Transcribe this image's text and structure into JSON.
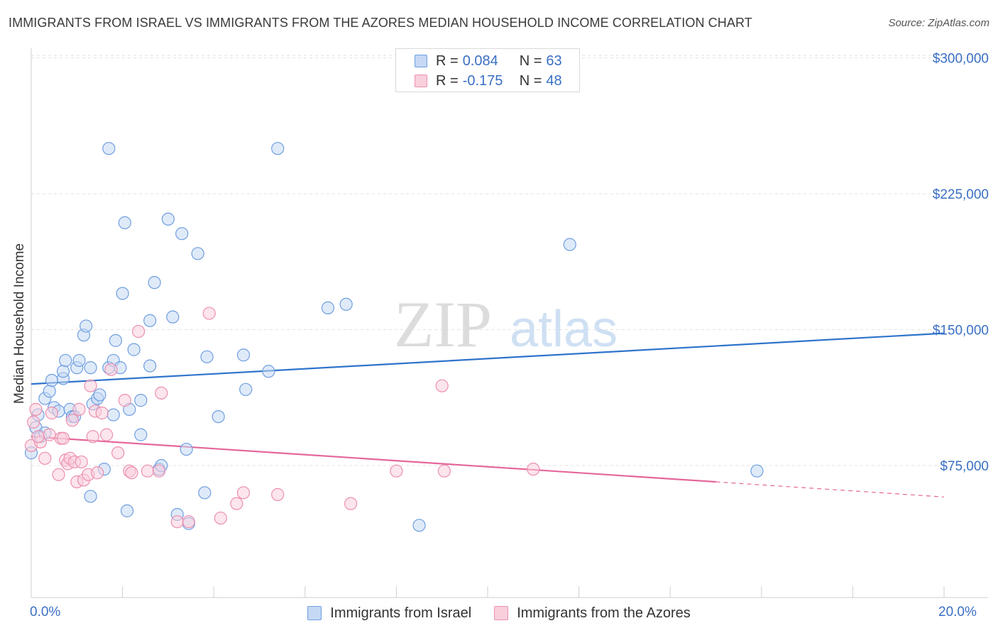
{
  "title": "IMMIGRANTS FROM ISRAEL VS IMMIGRANTS FROM THE AZORES MEDIAN HOUSEHOLD INCOME CORRELATION CHART",
  "source": "Source: ZipAtlas.com",
  "watermark": {
    "zip": "ZIP",
    "atlas": "atlas"
  },
  "legend_stats": {
    "rows": [
      {
        "r_label": "R =",
        "r_value": "0.084",
        "n_label": "N =",
        "n_value": "63",
        "color": "#6f9fe0",
        "fill": "#c5d8f4"
      },
      {
        "r_label": "R =",
        "r_value": "-0.175",
        "n_label": "N =",
        "n_value": "48",
        "color": "#ec8fb0",
        "fill": "#f9cfdc"
      }
    ]
  },
  "bottom_legend": [
    {
      "label": "Immigrants from Israel",
      "color": "#6f9fe0",
      "fill": "#c5d8f4"
    },
    {
      "label": "Immigrants from the Azores",
      "color": "#ec8fb0",
      "fill": "#f9cfdc"
    }
  ],
  "x_tick_labels": {
    "left": "0.0%",
    "right": "20.0%"
  },
  "chart_data": {
    "type": "scatter",
    "title": "IMMIGRANTS FROM ISRAEL VS IMMIGRANTS FROM THE AZORES MEDIAN HOUSEHOLD INCOME CORRELATION CHART",
    "xlabel": "",
    "ylabel": "Median Household Income",
    "xlim": [
      0,
      20
    ],
    "ylim": [
      10000,
      310000
    ],
    "x_unit": "%",
    "y_ticks": [
      75000,
      150000,
      225000,
      300000
    ],
    "y_tick_labels": [
      "$75,000",
      "$150,000",
      "$225,000",
      "$300,000"
    ],
    "x_tick_labels": [
      "0.0%",
      "20.0%"
    ],
    "grid": true,
    "legend_position": "top-center",
    "series": [
      {
        "name": "Immigrants from Israel",
        "color": "#6f9fe0",
        "fill": "#c5d8f4",
        "trend": {
          "x": [
            0,
            20
          ],
          "y": [
            120000,
            148000
          ],
          "color": "#2f74cc",
          "dashed_from_x": null
        },
        "points": [
          [
            0.0,
            82000
          ],
          [
            0.1,
            96000
          ],
          [
            0.15,
            103000
          ],
          [
            0.2,
            91000
          ],
          [
            0.3,
            93000
          ],
          [
            0.3,
            112000
          ],
          [
            0.4,
            116000
          ],
          [
            0.45,
            122000
          ],
          [
            0.5,
            107000
          ],
          [
            0.6,
            105000
          ],
          [
            0.7,
            123000
          ],
          [
            0.7,
            127000
          ],
          [
            0.75,
            133000
          ],
          [
            0.85,
            106000
          ],
          [
            0.9,
            102000
          ],
          [
            0.95,
            102000
          ],
          [
            1.0,
            129000
          ],
          [
            1.05,
            133000
          ],
          [
            1.15,
            147000
          ],
          [
            1.2,
            152000
          ],
          [
            1.3,
            58000
          ],
          [
            1.3,
            129000
          ],
          [
            1.35,
            109000
          ],
          [
            1.45,
            112000
          ],
          [
            1.5,
            114000
          ],
          [
            1.6,
            73000
          ],
          [
            1.7,
            129000
          ],
          [
            1.7,
            250000
          ],
          [
            1.8,
            133000
          ],
          [
            1.8,
            103000
          ],
          [
            1.85,
            144000
          ],
          [
            1.95,
            129000
          ],
          [
            2.0,
            170000
          ],
          [
            2.05,
            209000
          ],
          [
            2.1,
            50000
          ],
          [
            2.15,
            106000
          ],
          [
            2.25,
            139000
          ],
          [
            2.4,
            92000
          ],
          [
            2.4,
            111000
          ],
          [
            2.6,
            130000
          ],
          [
            2.6,
            155000
          ],
          [
            2.7,
            176000
          ],
          [
            2.8,
            73000
          ],
          [
            2.85,
            75000
          ],
          [
            3.0,
            211000
          ],
          [
            3.1,
            157000
          ],
          [
            3.2,
            48000
          ],
          [
            3.3,
            203000
          ],
          [
            3.4,
            84000
          ],
          [
            3.45,
            43000
          ],
          [
            3.65,
            192000
          ],
          [
            3.8,
            60000
          ],
          [
            3.85,
            135000
          ],
          [
            4.1,
            102000
          ],
          [
            4.65,
            136000
          ],
          [
            4.7,
            117000
          ],
          [
            5.2,
            127000
          ],
          [
            5.4,
            250000
          ],
          [
            6.5,
            162000
          ],
          [
            6.9,
            164000
          ],
          [
            8.5,
            42000
          ],
          [
            11.8,
            197000
          ],
          [
            15.9,
            72000
          ]
        ]
      },
      {
        "name": "Immigrants from the Azores",
        "color": "#ec8fb0",
        "fill": "#f9cfdc",
        "trend": {
          "x": [
            0,
            15
          ],
          "y": [
            91000,
            66000
          ],
          "color": "#e5679a",
          "dashed_from_x": 15
        },
        "points": [
          [
            0.0,
            86000
          ],
          [
            0.05,
            99000
          ],
          [
            0.1,
            106000
          ],
          [
            0.2,
            88000
          ],
          [
            0.3,
            79000
          ],
          [
            0.4,
            92000
          ],
          [
            0.45,
            104000
          ],
          [
            0.6,
            70000
          ],
          [
            0.65,
            90000
          ],
          [
            0.7,
            90000
          ],
          [
            0.75,
            78000
          ],
          [
            0.8,
            76000
          ],
          [
            0.85,
            79000
          ],
          [
            0.9,
            100000
          ],
          [
            0.95,
            77000
          ],
          [
            1.0,
            66000
          ],
          [
            1.05,
            106000
          ],
          [
            1.1,
            77000
          ],
          [
            1.15,
            67000
          ],
          [
            1.25,
            70000
          ],
          [
            1.3,
            119000
          ],
          [
            1.35,
            91000
          ],
          [
            1.4,
            105000
          ],
          [
            1.45,
            71000
          ],
          [
            1.55,
            104000
          ],
          [
            1.65,
            92000
          ],
          [
            1.75,
            128000
          ],
          [
            1.9,
            82000
          ],
          [
            2.05,
            111000
          ],
          [
            2.15,
            72000
          ],
          [
            2.2,
            71000
          ],
          [
            2.35,
            149000
          ],
          [
            2.55,
            72000
          ],
          [
            2.8,
            72000
          ],
          [
            2.85,
            115000
          ],
          [
            3.2,
            44000
          ],
          [
            3.45,
            44000
          ],
          [
            3.9,
            159000
          ],
          [
            4.15,
            46000
          ],
          [
            4.5,
            54000
          ],
          [
            4.65,
            60000
          ],
          [
            5.4,
            59000
          ],
          [
            7.0,
            54000
          ],
          [
            8.0,
            72000
          ],
          [
            9.0,
            119000
          ],
          [
            9.05,
            72000
          ],
          [
            11.0,
            73000
          ],
          [
            0.15,
            91000
          ]
        ]
      }
    ]
  }
}
